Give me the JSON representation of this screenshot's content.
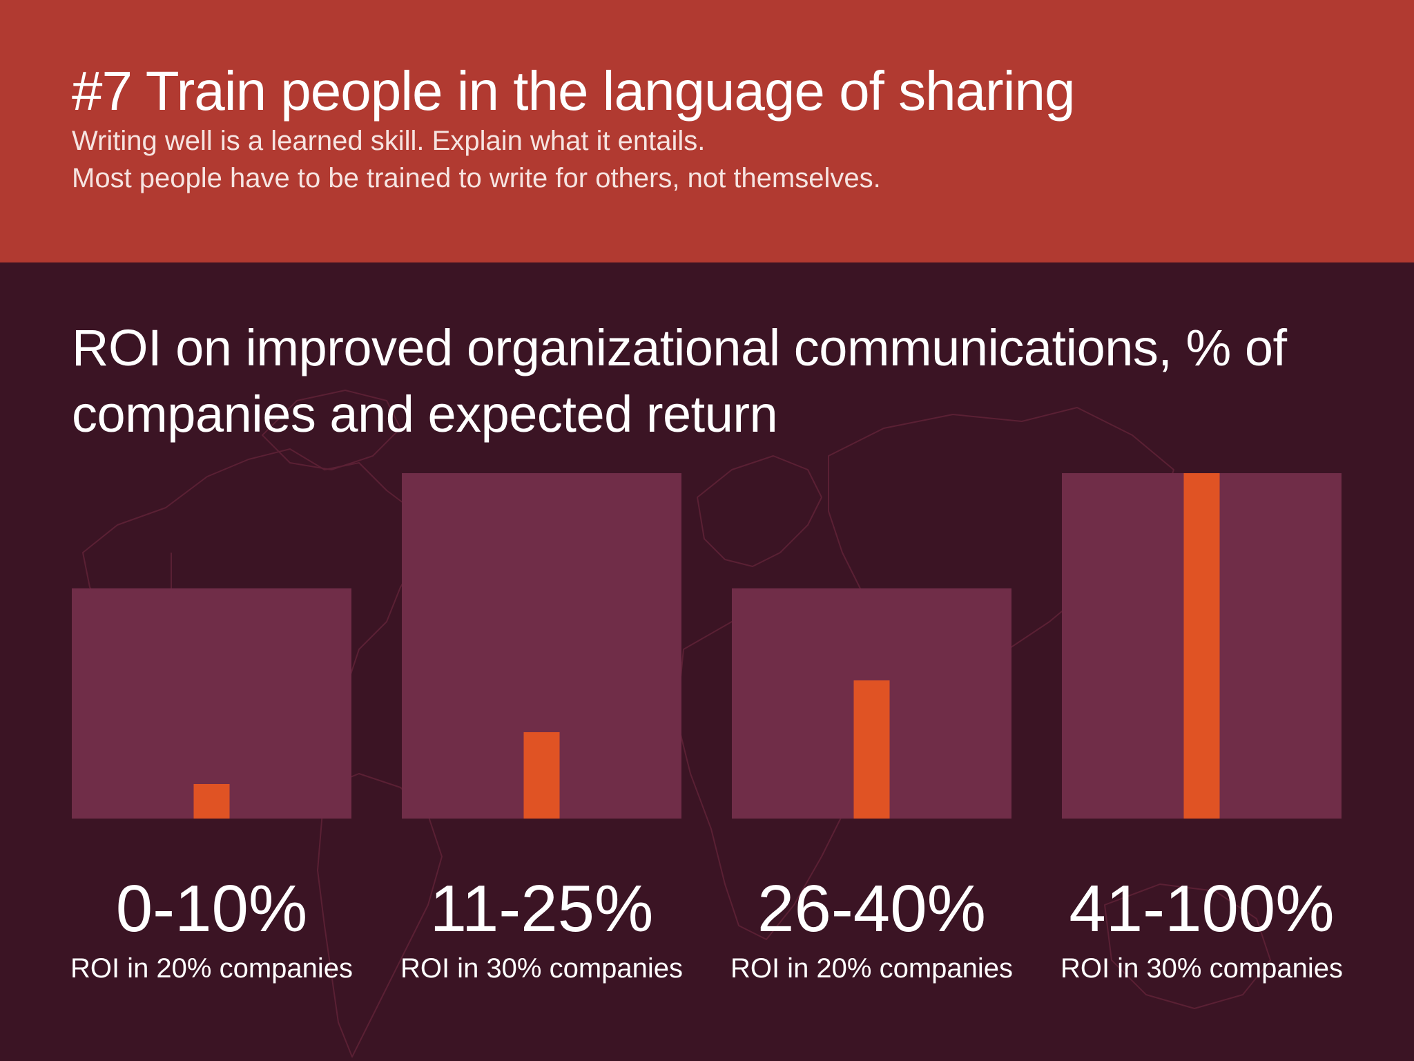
{
  "header": {
    "title": "#7 Train people in the language of sharing",
    "subtitle_line1": "Writing well is a learned skill. Explain what it entails.",
    "subtitle_line2": "Most people have to be trained to write for others, not themselves."
  },
  "colors": {
    "header_bg": "#b13a31",
    "main_bg": "#3b1424",
    "company_bar": "#702d48",
    "return_bar": "#e05324",
    "map_lines": "#5a2034"
  },
  "chart_data": {
    "type": "bar",
    "title": "ROI on improved organizational communications, % of companies and expected return",
    "categories": [
      "0-10%",
      "11-25%",
      "26-40%",
      "41-100%"
    ],
    "series": [
      {
        "values": [
          20,
          30,
          20,
          30
        ]
      },
      {
        "values": [
          10,
          25,
          40,
          100
        ]
      }
    ],
    "value_labels": [
      "ROI in 20% companies",
      "ROI in 30% companies",
      "ROI in 20% companies",
      "ROI in 30% companies"
    ],
    "grid": false
  }
}
